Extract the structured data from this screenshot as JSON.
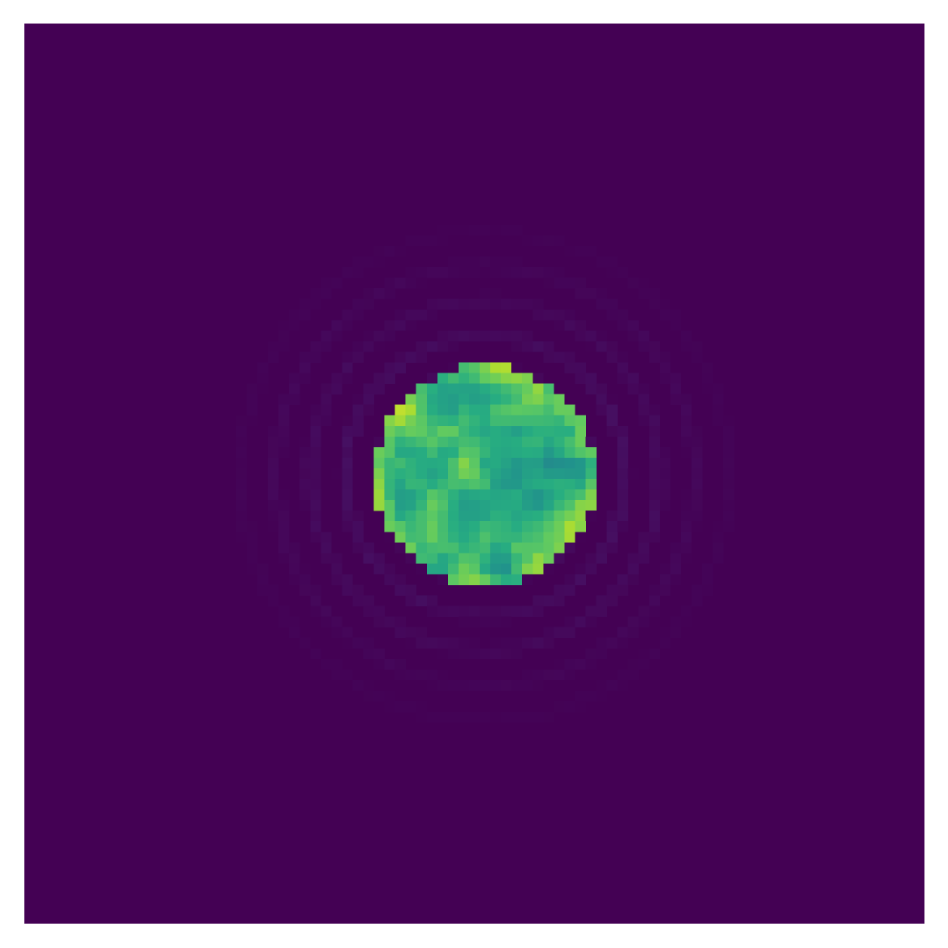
{
  "chart_data": {
    "type": "heatmap",
    "grid": {
      "rows": 85,
      "cols": 85
    },
    "axes_visible": false,
    "colormap": "viridis",
    "value_range": [
      0,
      1
    ],
    "background_value": 0.0,
    "features": [
      {
        "name": "disk",
        "center_col": 43.5,
        "center_row": 42.7,
        "radius": 10.4,
        "mean_value": 0.66,
        "value_spread": 0.14,
        "texture": "mottled"
      },
      {
        "name": "halo-rings",
        "center_col": 43.5,
        "center_row": 42.7,
        "inner_radius": 10.4,
        "outer_radius": 26.0,
        "peak_value": 0.06
      }
    ],
    "colors": {
      "low": "#440154",
      "mid": "#21918c",
      "high": "#fde725"
    }
  }
}
